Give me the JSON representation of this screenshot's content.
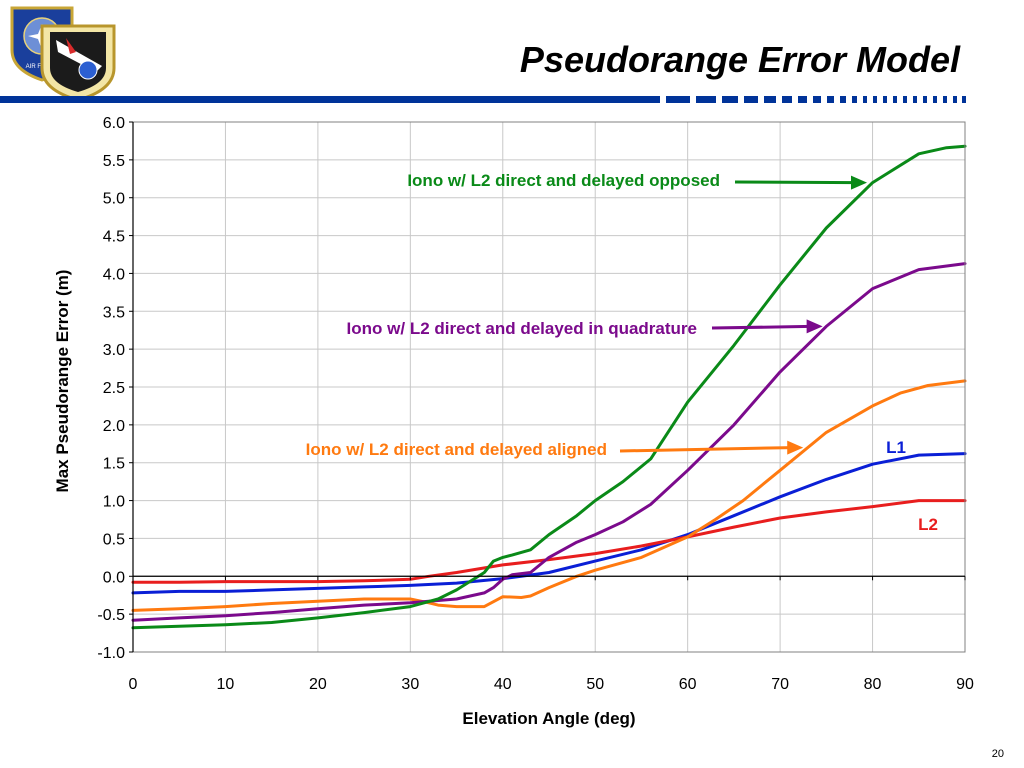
{
  "slide": {
    "title": "Pseudorange Error Model",
    "number": "20",
    "logos": [
      "air-force-emblem",
      "space-and-missile-systems-center-emblem"
    ],
    "banner_color": "#003399"
  },
  "chart_data": {
    "type": "line",
    "xlabel": "Elevation Angle (deg)",
    "ylabel": "Max Pseudorange Error (m)",
    "xlim": [
      0,
      90
    ],
    "ylim": [
      -1.0,
      6.0
    ],
    "xticks": [
      "0",
      "10",
      "20",
      "30",
      "40",
      "50",
      "60",
      "70",
      "80",
      "90"
    ],
    "yticks": [
      "6.0",
      "5.5",
      "5.0",
      "4.5",
      "4.0",
      "3.5",
      "3.0",
      "2.5",
      "2.0",
      "1.5",
      "1.0",
      "0.5",
      "0.0",
      "-0.5",
      "-1.0"
    ],
    "grid": true,
    "series": [
      {
        "name": "L1",
        "color": "#0a1fd6",
        "x": [
          0,
          5,
          10,
          15,
          20,
          25,
          30,
          35,
          40,
          42,
          45,
          50,
          55,
          60,
          65,
          70,
          75,
          80,
          85,
          90
        ],
        "y": [
          -0.22,
          -0.2,
          -0.2,
          -0.18,
          -0.16,
          -0.14,
          -0.12,
          -0.09,
          -0.03,
          0.0,
          0.05,
          0.2,
          0.35,
          0.55,
          0.8,
          1.05,
          1.28,
          1.48,
          1.6,
          1.62
        ]
      },
      {
        "name": "L2",
        "color": "#e81e1e",
        "x": [
          0,
          5,
          10,
          15,
          20,
          25,
          30,
          32,
          35,
          40,
          45,
          50,
          55,
          60,
          65,
          70,
          75,
          80,
          85,
          90
        ],
        "y": [
          -0.08,
          -0.08,
          -0.07,
          -0.07,
          -0.07,
          -0.06,
          -0.04,
          0.0,
          0.05,
          0.15,
          0.22,
          0.3,
          0.4,
          0.52,
          0.65,
          0.77,
          0.85,
          0.92,
          1.0,
          1.0
        ]
      },
      {
        "name": "Iono w/ L2 direct and delayed aligned",
        "color": "#ff7a10",
        "x": [
          0,
          5,
          10,
          15,
          20,
          25,
          30,
          32,
          33,
          35,
          38,
          40,
          42,
          43,
          45,
          48,
          50,
          55,
          60,
          63,
          66,
          70,
          75,
          80,
          83,
          86,
          90
        ],
        "y": [
          -0.45,
          -0.43,
          -0.4,
          -0.36,
          -0.33,
          -0.3,
          -0.3,
          -0.35,
          -0.38,
          -0.4,
          -0.4,
          -0.27,
          -0.28,
          -0.26,
          -0.15,
          0.0,
          0.08,
          0.25,
          0.52,
          0.75,
          1.0,
          1.4,
          1.9,
          2.25,
          2.42,
          2.52,
          2.58
        ]
      },
      {
        "name": "Iono w/ L2 direct and delayed in quadrature",
        "color": "#7b0a8c",
        "x": [
          0,
          5,
          10,
          15,
          20,
          25,
          30,
          33,
          35,
          38,
          39,
          40,
          41,
          43,
          45,
          48,
          50,
          53,
          56,
          60,
          65,
          70,
          75,
          80,
          85,
          90
        ],
        "y": [
          -0.58,
          -0.55,
          -0.52,
          -0.48,
          -0.43,
          -0.38,
          -0.35,
          -0.32,
          -0.3,
          -0.22,
          -0.15,
          -0.04,
          0.02,
          0.05,
          0.25,
          0.45,
          0.55,
          0.72,
          0.95,
          1.4,
          2.0,
          2.7,
          3.3,
          3.8,
          4.05,
          4.13
        ]
      },
      {
        "name": "Iono w/ L2 direct and delayed opposed",
        "color": "#0a8a18",
        "x": [
          0,
          5,
          10,
          15,
          20,
          25,
          30,
          33,
          35,
          38,
          39,
          40,
          41,
          43,
          45,
          48,
          50,
          53,
          56,
          60,
          65,
          70,
          75,
          80,
          85,
          88,
          90
        ],
        "y": [
          -0.68,
          -0.66,
          -0.64,
          -0.61,
          -0.55,
          -0.48,
          -0.4,
          -0.3,
          -0.18,
          0.05,
          0.2,
          0.25,
          0.28,
          0.35,
          0.55,
          0.8,
          1.0,
          1.25,
          1.55,
          2.3,
          3.05,
          3.85,
          4.6,
          5.2,
          5.58,
          5.66,
          5.68
        ]
      }
    ],
    "annotations": [
      {
        "text": "Iono w/ L2 direct and delayed opposed",
        "color": "#0a8a18",
        "arrow_to": [
          79.4,
          5.2
        ]
      },
      {
        "text": "Iono w/ L2 direct and delayed in quadrature",
        "color": "#7b0a8c",
        "arrow_to": [
          74.6,
          3.3
        ]
      },
      {
        "text": "Iono w/ L2 direct and delayed aligned",
        "color": "#ff7a10",
        "arrow_to": [
          72.5,
          1.7
        ]
      },
      {
        "text": "L1",
        "color": "#0a1fd6"
      },
      {
        "text": "L2",
        "color": "#e81e1e"
      }
    ]
  }
}
